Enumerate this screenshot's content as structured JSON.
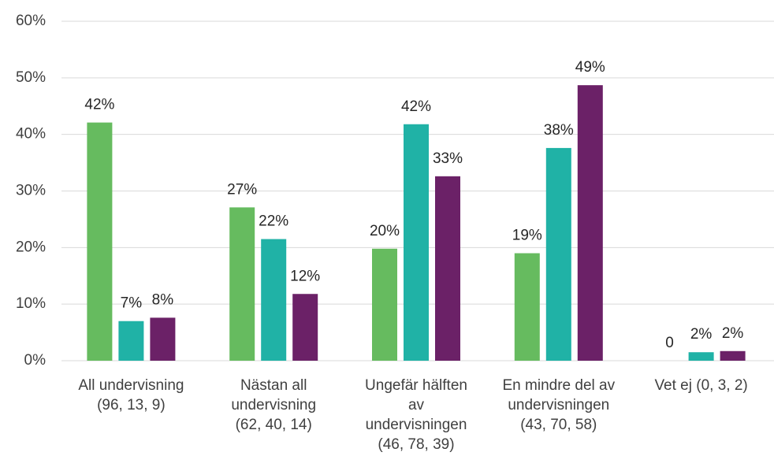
{
  "chart_data": {
    "type": "bar",
    "categories": [
      [
        "All undervisning",
        "(96, 13, 9)"
      ],
      [
        "Nästan all",
        "undervisning",
        "(62, 40, 14)"
      ],
      [
        "Ungefär hälften",
        "av",
        "undervisningen",
        "(46, 78, 39)"
      ],
      [
        "En mindre del av",
        "undervisningen",
        "(43, 70, 58)"
      ],
      [
        "Vet ej (0, 3, 2)"
      ]
    ],
    "series": [
      {
        "color": "#66bb5f",
        "values": [
          42.1,
          27.1,
          19.8,
          19.0,
          0
        ],
        "value_labels": [
          "42%",
          "27%",
          "20%",
          "19%",
          "0"
        ]
      },
      {
        "color": "#20b2a6",
        "values": [
          7.0,
          21.5,
          41.8,
          37.6,
          1.5
        ],
        "value_labels": [
          "7%",
          "22%",
          "42%",
          "38%",
          "2%"
        ]
      },
      {
        "color": "#6b2167",
        "values": [
          7.6,
          11.8,
          32.6,
          48.7,
          1.7
        ],
        "value_labels": [
          "8%",
          "12%",
          "33%",
          "49%",
          "2%"
        ]
      }
    ],
    "ylim": [
      0,
      60
    ],
    "yticks": [
      {
        "value": 0,
        "label": "0%"
      },
      {
        "value": 10,
        "label": "10%"
      },
      {
        "value": 20,
        "label": "20%"
      },
      {
        "value": 30,
        "label": "30%"
      },
      {
        "value": 40,
        "label": "40%"
      },
      {
        "value": 50,
        "label": "50%"
      },
      {
        "value": 60,
        "label": "60%"
      }
    ],
    "grid": true
  }
}
